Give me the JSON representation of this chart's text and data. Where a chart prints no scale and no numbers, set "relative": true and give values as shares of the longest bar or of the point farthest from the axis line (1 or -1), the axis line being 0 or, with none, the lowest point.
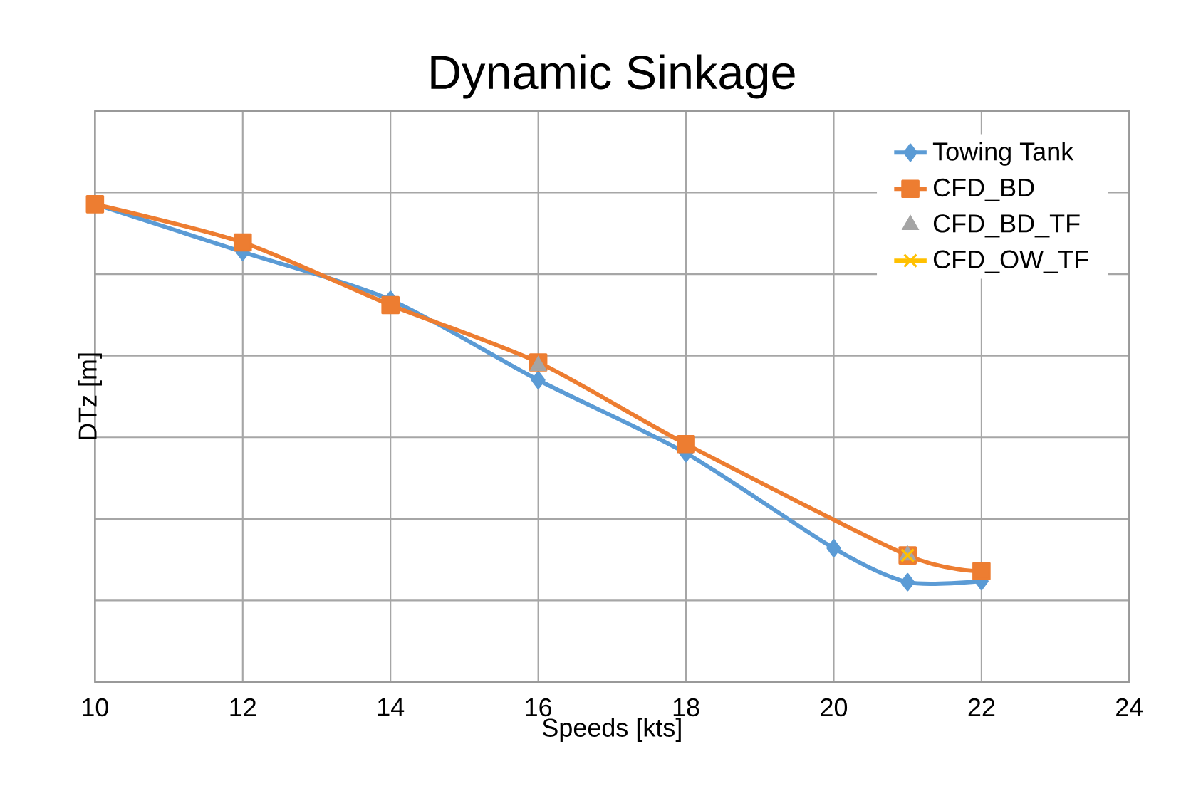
{
  "chart_data": {
    "type": "line",
    "title": "Dynamic Sinkage",
    "xlabel": "Speeds [kts]",
    "ylabel": "DTz [m]",
    "relative": true,
    "xlim": [
      10,
      24
    ],
    "xticks": [
      10,
      12,
      14,
      16,
      18,
      20,
      22,
      24
    ],
    "grid": true,
    "legend": "top right",
    "series": [
      {
        "name": "Towing Tank",
        "color": "#5b9bd5",
        "marker": "diamond",
        "line_style": "solid",
        "x": [
          10,
          12,
          14,
          16,
          18,
          20,
          21,
          22
        ],
        "values": [
          1,
          0.9,
          0.8,
          0.632,
          0.479,
          0.28,
          0.209,
          0.211
        ]
      },
      {
        "name": "CFD_BD",
        "color": "#ed7d31",
        "marker": "square",
        "line_style": "solid",
        "x": [
          10,
          12,
          14,
          16,
          18,
          21,
          22
        ],
        "values": [
          1,
          0.92,
          0.789,
          0.669,
          0.498,
          0.265,
          0.232
        ]
      },
      {
        "name": "CFD_BD_TF",
        "type": "scatter",
        "color": "#a5a5a5",
        "marker": "triangle",
        "x": [
          16,
          21
        ],
        "values": [
          0.662,
          0.265
        ]
      },
      {
        "name": "CFD_OW_TF",
        "color": "#ffc000",
        "marker": "cross",
        "line_style": "solid",
        "x": [
          21
        ],
        "values": [
          0.265
        ]
      }
    ]
  }
}
